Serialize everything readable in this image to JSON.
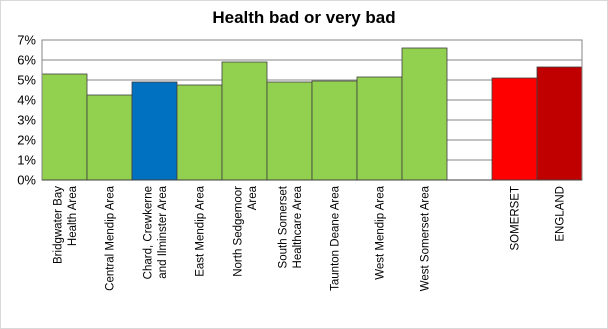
{
  "chart_data": {
    "type": "bar",
    "title": "Health bad or very bad",
    "xlabel": "",
    "ylabel": "",
    "ylim": [
      0,
      7
    ],
    "y_ticks": [
      "0%",
      "1%",
      "2%",
      "3%",
      "4%",
      "5%",
      "6%",
      "7%"
    ],
    "grid": true,
    "legend": "none",
    "categories": [
      "Bridgwater Bay Health Area",
      "Central Mendip Area",
      "Chard, Crewkerne and Ilminster Area",
      "East Mendip Area",
      "North Sedgemoor Area",
      "South Somerset Healthcare Area",
      "Taunton Deane Area",
      "West Mendip Area",
      "West Somerset Area",
      "",
      "SOMERSET",
      "ENGLAND"
    ],
    "category_lines": [
      [
        "Bridgwater Bay",
        "Health Area"
      ],
      [
        "Central Mendip Area"
      ],
      [
        "Chard, Crewkerne",
        "and Ilminster Area"
      ],
      [
        "East Mendip Area"
      ],
      [
        "North Sedgemoor",
        "Area"
      ],
      [
        "South Somerset",
        "Healthcare Area"
      ],
      [
        "Taunton Deane Area"
      ],
      [
        "West Mendip Area"
      ],
      [
        "West Somerset Area"
      ],
      [],
      [
        "SOMERSET"
      ],
      [
        "ENGLAND"
      ]
    ],
    "values": [
      5.3,
      4.25,
      4.9,
      4.75,
      5.9,
      4.9,
      4.95,
      5.15,
      6.6,
      null,
      5.1,
      5.65
    ],
    "colors": [
      "#92d050",
      "#92d050",
      "#0070c0",
      "#92d050",
      "#92d050",
      "#92d050",
      "#92d050",
      "#92d050",
      "#92d050",
      null,
      "#ff0000",
      "#c00000"
    ]
  }
}
